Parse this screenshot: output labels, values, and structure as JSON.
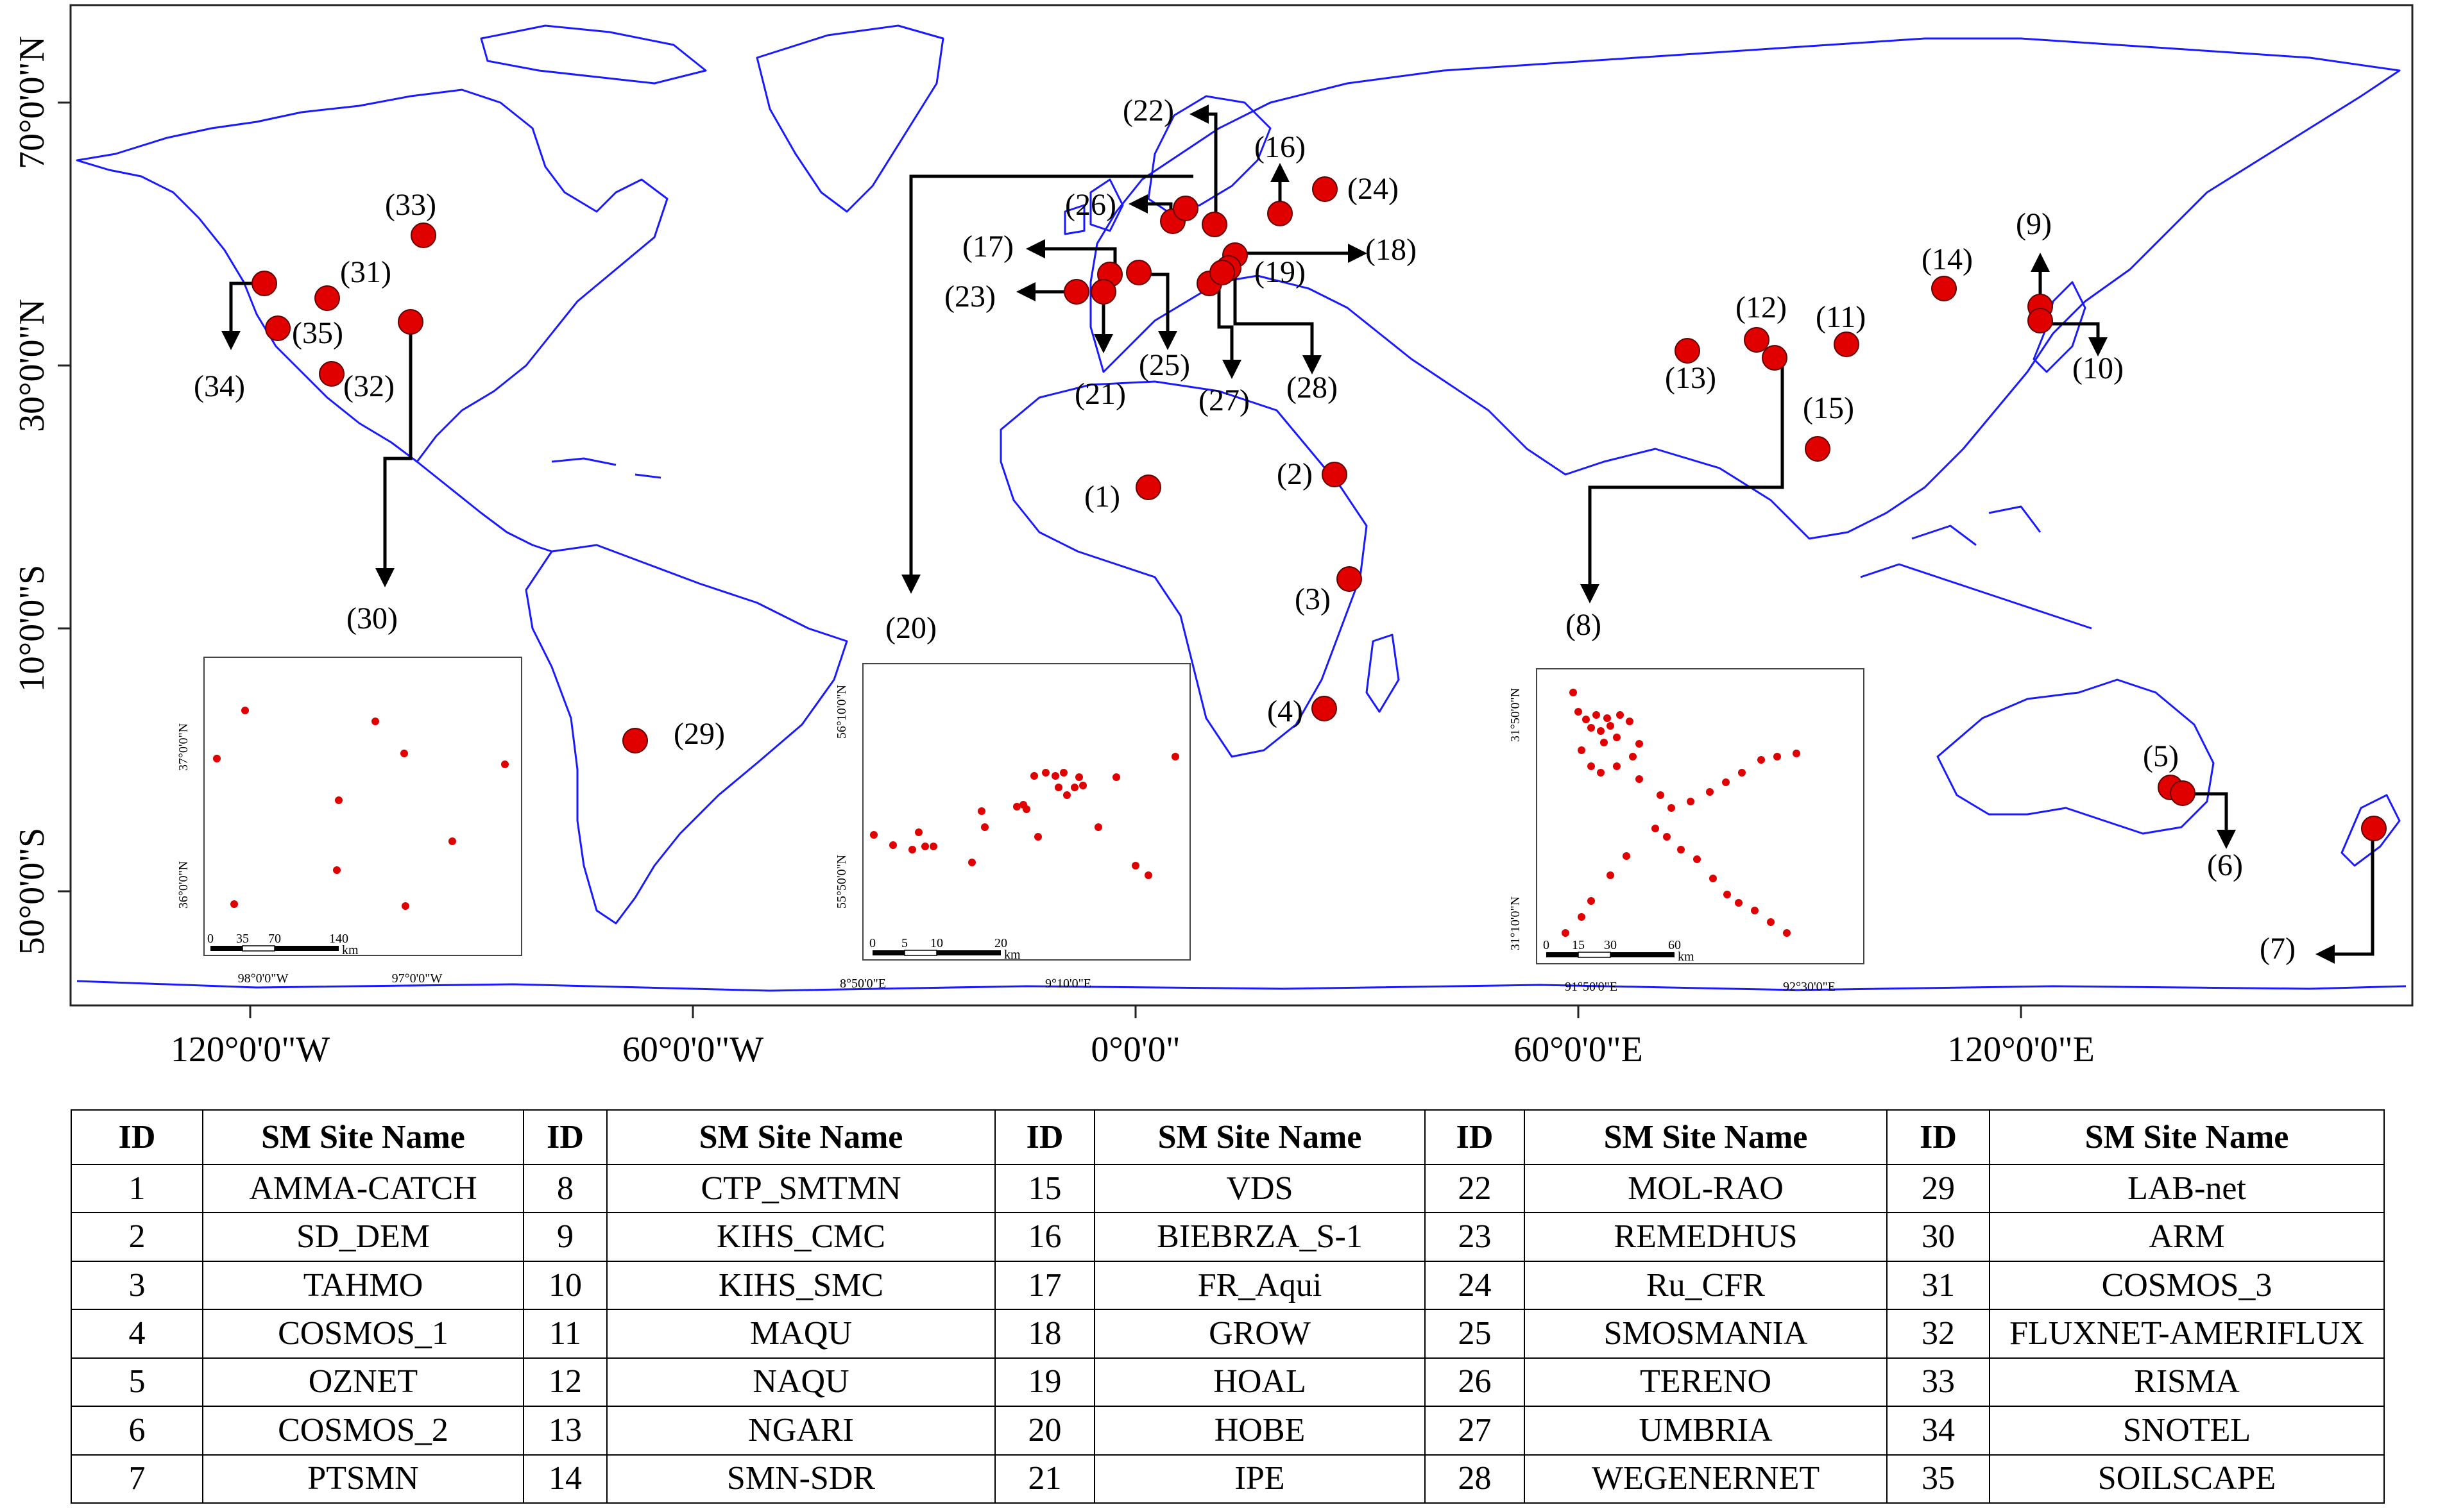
{
  "map": {
    "lat_labels": [
      "70°0'0\"N",
      "30°0'0\"N",
      "10°0'0\"S",
      "50°0'0\"S"
    ],
    "lon_labels": [
      "120°0'0\"W",
      "60°0'0\"W",
      "0°0'0\"",
      "60°0'0\"E",
      "120°0'0\"E"
    ],
    "coastline_color": "#1a1aff",
    "site_color": "#e00000",
    "arrow_color": "#000000",
    "sites": [
      {
        "id": "(1)"
      },
      {
        "id": "(2)"
      },
      {
        "id": "(3)"
      },
      {
        "id": "(4)"
      },
      {
        "id": "(5)"
      },
      {
        "id": "(6)"
      },
      {
        "id": "(7)"
      },
      {
        "id": "(8)"
      },
      {
        "id": "(9)"
      },
      {
        "id": "(10)"
      },
      {
        "id": "(11)"
      },
      {
        "id": "(12)"
      },
      {
        "id": "(13)"
      },
      {
        "id": "(14)"
      },
      {
        "id": "(15)"
      },
      {
        "id": "(16)"
      },
      {
        "id": "(17)"
      },
      {
        "id": "(18)"
      },
      {
        "id": "(19)"
      },
      {
        "id": "(20)"
      },
      {
        "id": "(21)"
      },
      {
        "id": "(22)"
      },
      {
        "id": "(23)"
      },
      {
        "id": "(24)"
      },
      {
        "id": "(25)"
      },
      {
        "id": "(26)"
      },
      {
        "id": "(27)"
      },
      {
        "id": "(28)"
      },
      {
        "id": "(29)"
      },
      {
        "id": "(30)"
      },
      {
        "id": "(31)"
      },
      {
        "id": "(32)"
      },
      {
        "id": "(33)"
      },
      {
        "id": "(34)"
      },
      {
        "id": "(35)"
      }
    ],
    "insets": [
      {
        "lat_ticks": [
          "37°0'0\"N",
          "36°0'0\"N"
        ],
        "lon_ticks": [
          "98°0'0\"W",
          "97°0'0\"W"
        ],
        "scale_ticks": [
          "0",
          "35",
          "70",
          "140"
        ],
        "scale_unit": "km"
      },
      {
        "lat_ticks": [
          "56°10'0\"N",
          "55°50'0\"N"
        ],
        "lon_ticks": [
          "8°50'0\"E",
          "9°10'0\"E"
        ],
        "scale_ticks": [
          "0",
          "5",
          "10",
          "20"
        ],
        "scale_unit": "km"
      },
      {
        "lat_ticks": [
          "31°50'0\"N",
          "31°10'0\"N"
        ],
        "lon_ticks": [
          "91°50'0\"E",
          "92°30'0\"E"
        ],
        "scale_ticks": [
          "0",
          "15",
          "30",
          "60"
        ],
        "scale_unit": "km"
      }
    ]
  },
  "table": {
    "headers": [
      "ID",
      "SM Site Name",
      "ID",
      "SM Site Name",
      "ID",
      "SM Site Name",
      "ID",
      "SM Site Name",
      "ID",
      "SM Site Name"
    ],
    "rows": [
      [
        "1",
        "AMMA-CATCH",
        "8",
        "CTP_SMTMN",
        "15",
        "VDS",
        "22",
        "MOL-RAO",
        "29",
        "LAB-net"
      ],
      [
        "2",
        "SD_DEM",
        "9",
        "KIHS_CMC",
        "16",
        "BIEBRZA_S-1",
        "23",
        "REMEDHUS",
        "30",
        "ARM"
      ],
      [
        "3",
        "TAHMO",
        "10",
        "KIHS_SMC",
        "17",
        "FR_Aqui",
        "24",
        "Ru_CFR",
        "31",
        "COSMOS_3"
      ],
      [
        "4",
        "COSMOS_1",
        "11",
        "MAQU",
        "18",
        "GROW",
        "25",
        "SMOSMANIA",
        "32",
        "FLUXNET-AMERIFLUX"
      ],
      [
        "5",
        "OZNET",
        "12",
        "NAQU",
        "19",
        "HOAL",
        "26",
        "TERENO",
        "33",
        "RISMA"
      ],
      [
        "6",
        "COSMOS_2",
        "13",
        "NGARI",
        "20",
        "HOBE",
        "27",
        "UMBRIA",
        "34",
        "SNOTEL"
      ],
      [
        "7",
        "PTSMN",
        "14",
        "SMN-SDR",
        "21",
        "IPE",
        "28",
        "WEGENERNET",
        "35",
        "SOILSCAPE"
      ]
    ]
  }
}
